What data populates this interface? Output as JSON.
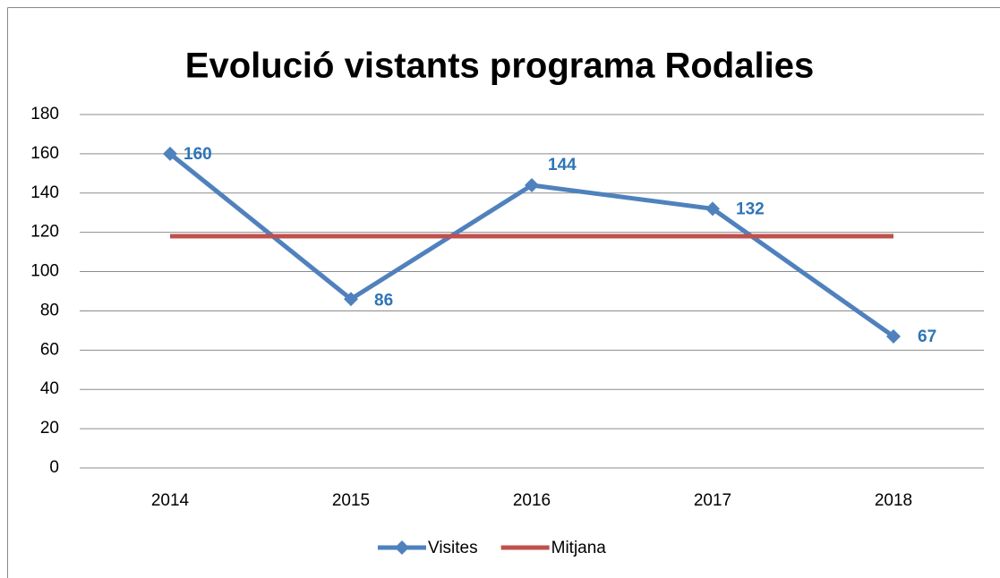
{
  "chart_data": {
    "type": "line",
    "title": "Evolució vistants programa Rodalies",
    "categories": [
      "2014",
      "2015",
      "2016",
      "2017",
      "2018"
    ],
    "series": [
      {
        "name": "Visites",
        "color": "#4f81bd",
        "values": [
          160,
          86,
          144,
          132,
          67
        ],
        "marker": "diamond",
        "data_labels": true
      },
      {
        "name": "Mitjana",
        "color": "#c0504d",
        "values": [
          118,
          118,
          118,
          118,
          118
        ]
      }
    ],
    "ylim": [
      0,
      180
    ],
    "yticks": [
      0,
      20,
      40,
      60,
      80,
      100,
      120,
      140,
      160,
      180
    ],
    "grid": true,
    "legend": "bottom"
  }
}
